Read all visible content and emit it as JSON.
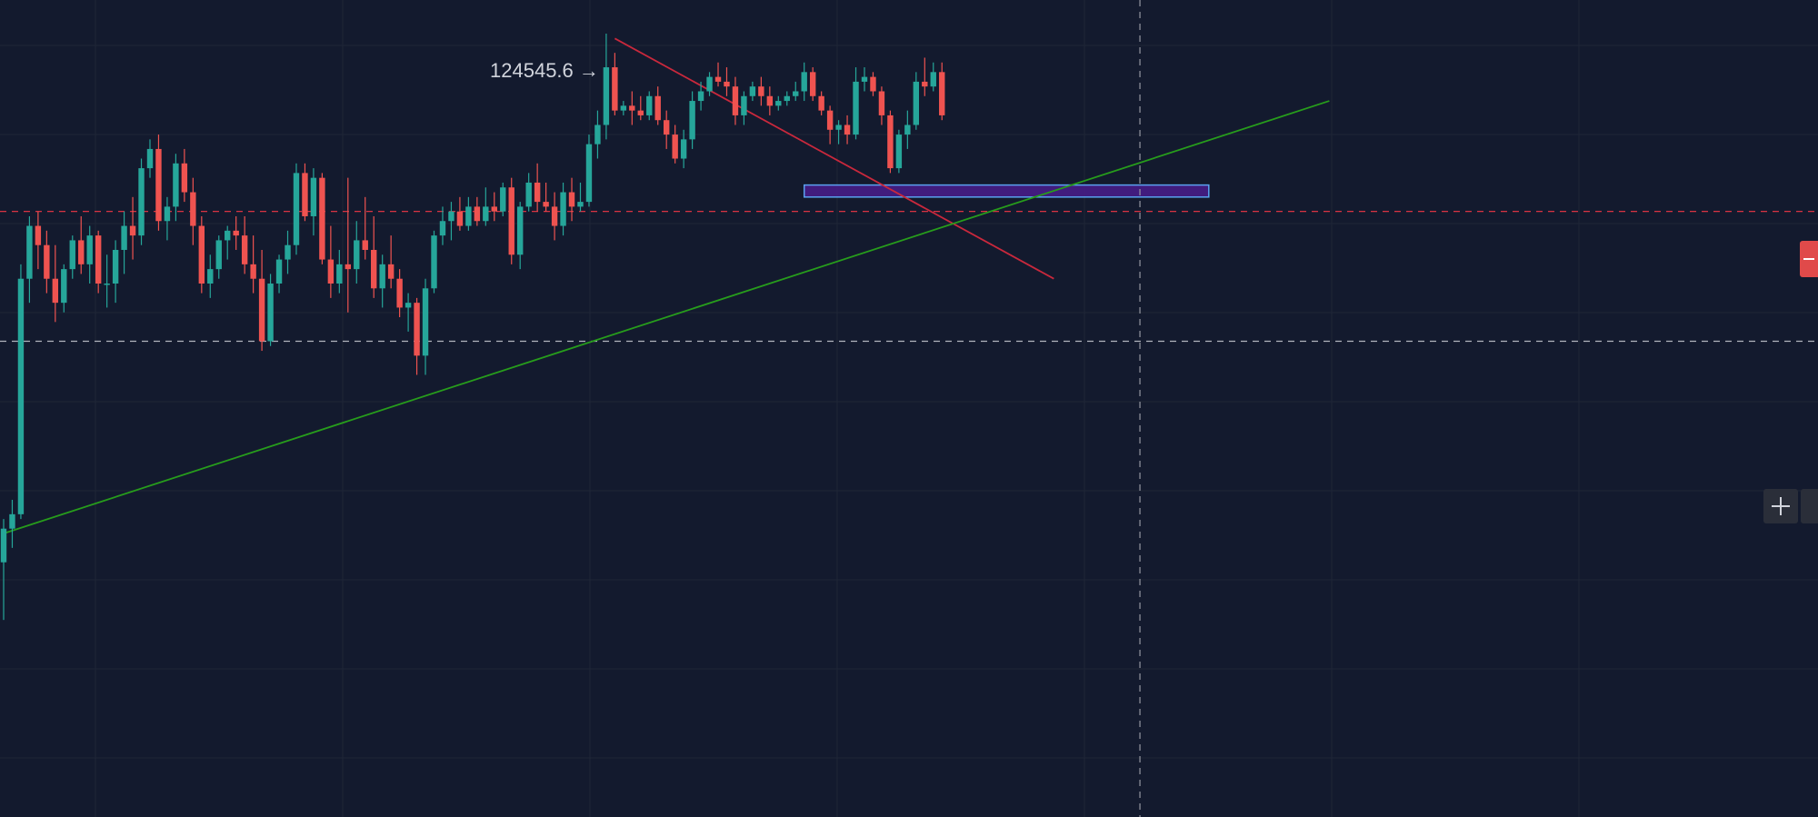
{
  "chart_data": {
    "type": "candlestick",
    "title": "",
    "xlabel": "",
    "ylabel": "",
    "ylim": [
      109000,
      126000
    ],
    "grid": true,
    "peak_annotation": {
      "text": "124545.6 →",
      "value": 124545.6
    },
    "candles": [
      [
        114300,
        115200,
        113100,
        115000
      ],
      [
        115000,
        115600,
        114600,
        115300
      ],
      [
        115300,
        120500,
        115200,
        120200
      ],
      [
        120200,
        121500,
        119700,
        121300
      ],
      [
        121300,
        121600,
        120400,
        120900
      ],
      [
        120900,
        121200,
        119900,
        120200
      ],
      [
        120200,
        120900,
        119300,
        119700
      ],
      [
        119700,
        120500,
        119500,
        120400
      ],
      [
        120400,
        121100,
        120200,
        121000
      ],
      [
        121000,
        121500,
        120300,
        120500
      ],
      [
        120500,
        121300,
        120100,
        121100
      ],
      [
        121100,
        121200,
        119900,
        120100
      ],
      [
        120100,
        120700,
        119600,
        120100
      ],
      [
        120100,
        121000,
        119700,
        120800
      ],
      [
        120800,
        121600,
        120300,
        121300
      ],
      [
        121300,
        121900,
        120600,
        121100
      ],
      [
        121100,
        122700,
        120900,
        122500
      ],
      [
        122500,
        123100,
        122300,
        122900
      ],
      [
        122900,
        123200,
        121200,
        121400
      ],
      [
        121400,
        121900,
        121000,
        121700
      ],
      [
        121700,
        122800,
        121400,
        122600
      ],
      [
        122600,
        122900,
        121800,
        122000
      ],
      [
        122000,
        122300,
        120900,
        121300
      ],
      [
        121300,
        121500,
        119900,
        120100
      ],
      [
        120100,
        120700,
        119800,
        120400
      ],
      [
        120400,
        121100,
        120200,
        121000
      ],
      [
        121000,
        121300,
        120600,
        121200
      ],
      [
        121200,
        121500,
        120800,
        121100
      ],
      [
        121100,
        121500,
        120300,
        120500
      ],
      [
        120500,
        121100,
        119900,
        120200
      ],
      [
        120200,
        120800,
        118700,
        118900
      ],
      [
        118900,
        120300,
        118800,
        120100
      ],
      [
        120100,
        120700,
        119900,
        120600
      ],
      [
        120600,
        121200,
        120300,
        120900
      ],
      [
        120900,
        122600,
        120700,
        122400
      ],
      [
        122400,
        122600,
        121400,
        121500
      ],
      [
        121500,
        122500,
        121100,
        122300
      ],
      [
        122300,
        122400,
        120500,
        120600
      ],
      [
        120600,
        121300,
        119800,
        120100
      ],
      [
        120100,
        120800,
        119900,
        120500
      ],
      [
        120500,
        122300,
        119500,
        120400
      ],
      [
        120400,
        121400,
        120100,
        121000
      ],
      [
        121000,
        121900,
        120600,
        120800
      ],
      [
        120800,
        121500,
        119800,
        120000
      ],
      [
        120000,
        120700,
        119600,
        120500
      ],
      [
        120500,
        121100,
        120000,
        120200
      ],
      [
        120200,
        120400,
        119400,
        119600
      ],
      [
        119600,
        119900,
        119100,
        119700
      ],
      [
        119700,
        119800,
        118200,
        118600
      ],
      [
        118600,
        120200,
        118200,
        120000
      ],
      [
        120000,
        121200,
        119900,
        121100
      ],
      [
        121100,
        121700,
        120900,
        121400
      ],
      [
        121400,
        121800,
        121000,
        121600
      ],
      [
        121600,
        121900,
        121200,
        121300
      ],
      [
        121300,
        121900,
        121200,
        121700
      ],
      [
        121700,
        121900,
        121300,
        121400
      ],
      [
        121400,
        122100,
        121300,
        121700
      ],
      [
        121700,
        122000,
        121400,
        121600
      ],
      [
        121600,
        122200,
        121500,
        122100
      ],
      [
        122100,
        122300,
        120500,
        120700
      ],
      [
        120700,
        121800,
        120400,
        121700
      ],
      [
        121700,
        122400,
        121600,
        122200
      ],
      [
        122200,
        122600,
        121600,
        121800
      ],
      [
        121800,
        122200,
        121600,
        121700
      ],
      [
        121700,
        122000,
        121000,
        121300
      ],
      [
        121300,
        122200,
        121100,
        122000
      ],
      [
        122000,
        122300,
        121400,
        121700
      ],
      [
        121700,
        122200,
        121600,
        121800
      ],
      [
        121800,
        123200,
        121700,
        123000
      ],
      [
        123000,
        123700,
        122700,
        123400
      ],
      [
        123400,
        125300,
        123100,
        124600
      ],
      [
        124600,
        124900,
        123600,
        123700
      ],
      [
        123700,
        123900,
        123600,
        123800
      ],
      [
        123800,
        124100,
        123400,
        123700
      ],
      [
        123700,
        124000,
        123500,
        123600
      ],
      [
        123600,
        124100,
        123500,
        124000
      ],
      [
        124000,
        124200,
        123400,
        123500
      ],
      [
        123500,
        123700,
        122900,
        123200
      ],
      [
        123200,
        123400,
        122600,
        122700
      ],
      [
        122700,
        123300,
        122500,
        123100
      ],
      [
        123100,
        124100,
        122900,
        123900
      ],
      [
        123900,
        124300,
        123700,
        124100
      ],
      [
        124100,
        124500,
        124000,
        124400
      ],
      [
        124400,
        124700,
        124200,
        124300
      ],
      [
        124300,
        124600,
        124000,
        124200
      ],
      [
        124200,
        124400,
        123400,
        123600
      ],
      [
        123600,
        124100,
        123400,
        124000
      ],
      [
        124000,
        124300,
        123900,
        124200
      ],
      [
        124200,
        124400,
        123800,
        124000
      ],
      [
        124000,
        124200,
        123600,
        123800
      ],
      [
        123800,
        124000,
        123700,
        123900
      ],
      [
        123900,
        124100,
        123800,
        124000
      ],
      [
        124000,
        124300,
        123900,
        124100
      ],
      [
        124100,
        124700,
        123900,
        124500
      ],
      [
        124500,
        124600,
        123900,
        124000
      ],
      [
        124000,
        124100,
        123600,
        123700
      ],
      [
        123700,
        123800,
        123000,
        123300
      ],
      [
        123300,
        123500,
        123000,
        123400
      ],
      [
        123400,
        123600,
        123000,
        123200
      ],
      [
        123200,
        124600,
        123100,
        124300
      ],
      [
        124300,
        124600,
        124100,
        124400
      ],
      [
        124400,
        124500,
        124000,
        124100
      ],
      [
        124100,
        124200,
        123400,
        123600
      ],
      [
        123600,
        123700,
        122400,
        122500
      ],
      [
        122500,
        123300,
        122400,
        123200
      ],
      [
        123200,
        123700,
        122900,
        123400
      ],
      [
        123400,
        124500,
        123300,
        124300
      ],
      [
        124300,
        124800,
        124000,
        124200
      ],
      [
        124200,
        124700,
        124100,
        124500
      ],
      [
        124500,
        124700,
        123500,
        123600
      ]
    ],
    "horizontal_levels": [
      {
        "name": "dashed-red-level",
        "value": 121600,
        "color": "#f23645"
      },
      {
        "name": "dashed-white-level",
        "value": 118900,
        "color": "#b2b5be"
      }
    ],
    "trendlines": [
      {
        "name": "red-trendline",
        "color": "#c9283c",
        "from": [
          71,
          125200
        ],
        "to": [
          122,
          120200
        ]
      },
      {
        "name": "green-trendline",
        "color": "#279c1c",
        "from": [
          0,
          114900
        ],
        "to": [
          154,
          123900
        ]
      }
    ],
    "zone": {
      "name": "purple-zone",
      "from_index": 93,
      "to_index": 140,
      "top": 122150,
      "bottom": 121900,
      "fill": "#4a1d8c",
      "border": "#5aa2f0"
    },
    "crosshair_x_index": 132,
    "colors": {
      "up": "#26a69a",
      "down": "#ef5350",
      "background": "#131a2e",
      "grid": "#1f2637"
    }
  },
  "ui": {
    "crosshair_icon": "plus-icon",
    "price_tag_icon": "minus-icon"
  }
}
